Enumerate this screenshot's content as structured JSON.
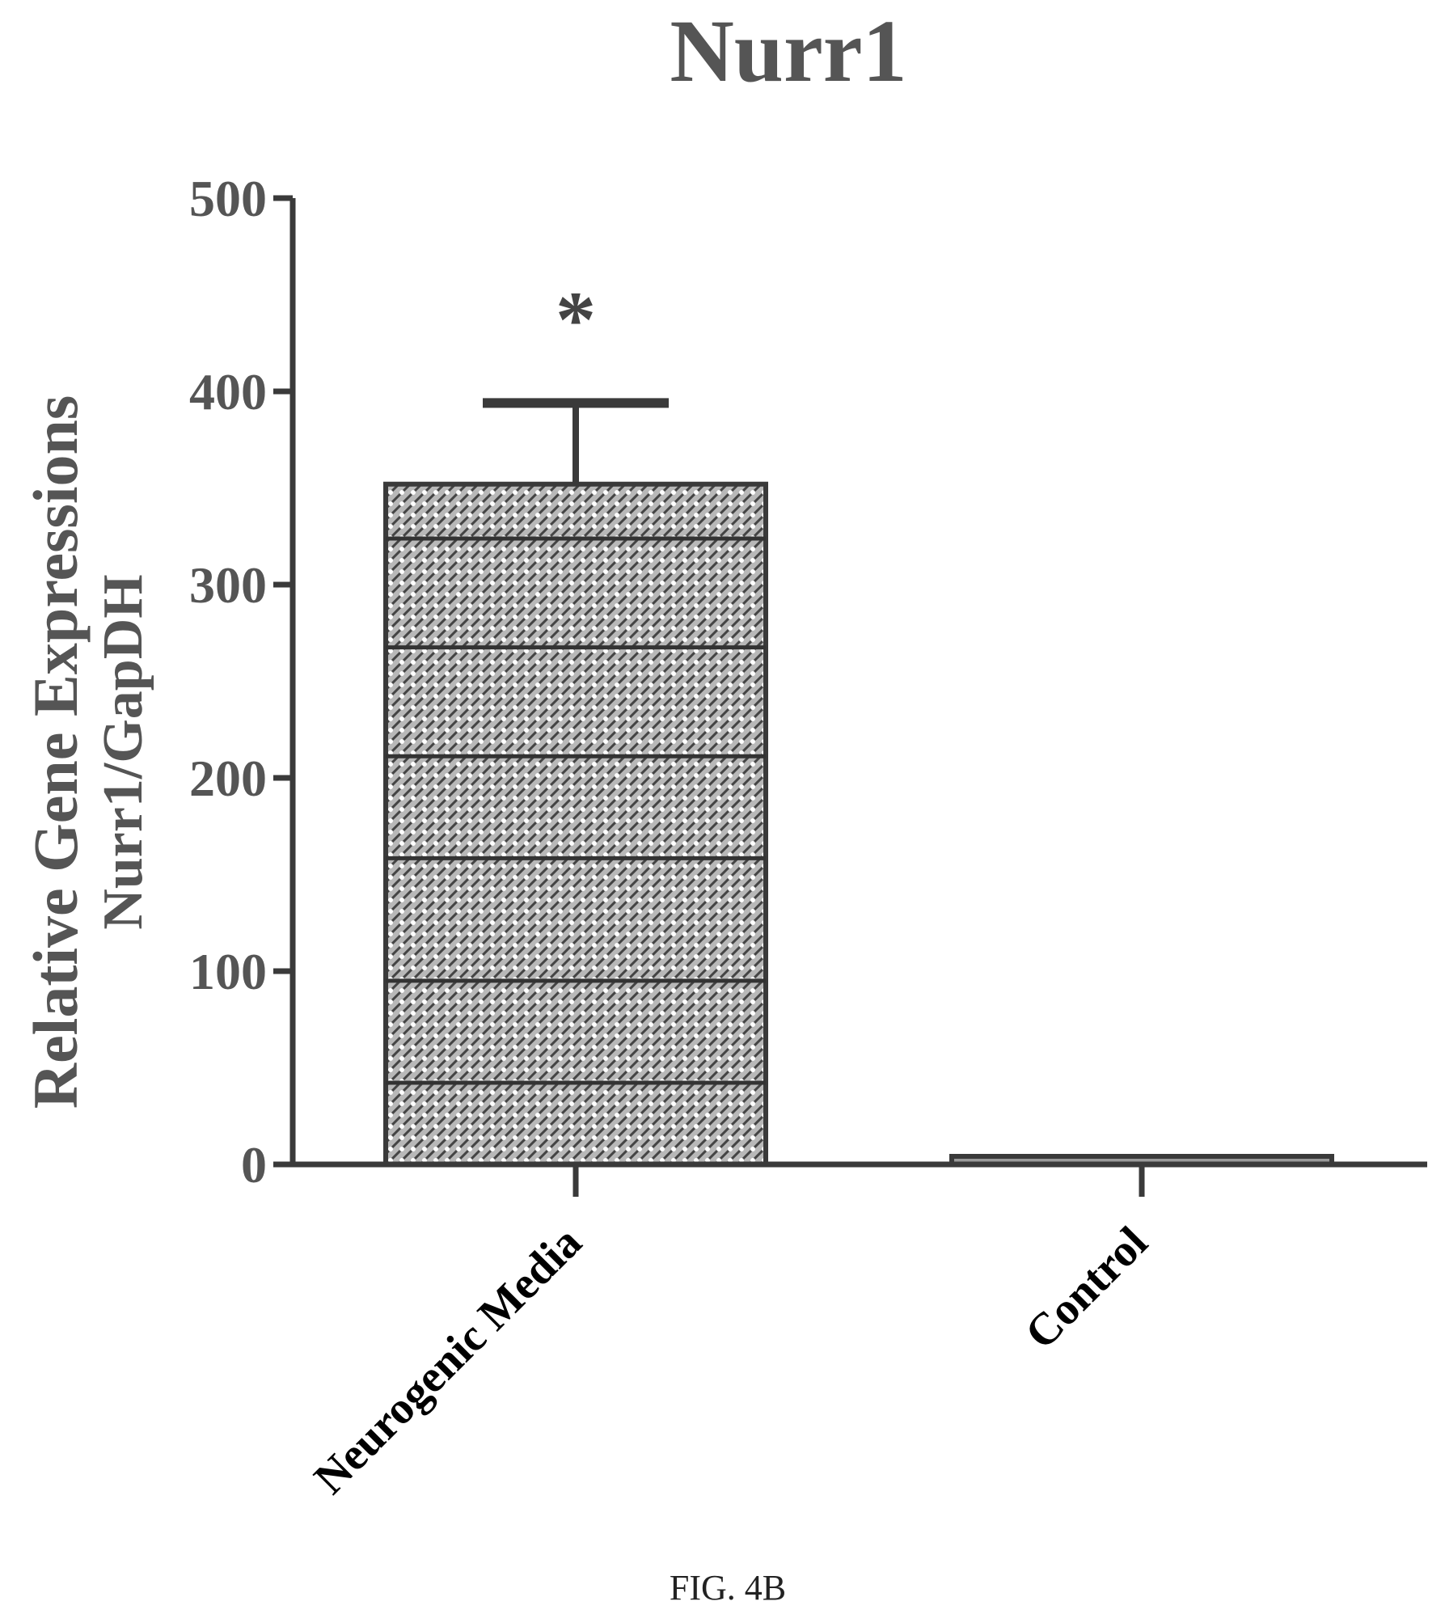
{
  "chart_data": {
    "type": "bar",
    "title": "Nurr1",
    "ylabel_line1": "Relative Gene Expressions",
    "ylabel_line2": "Nurr1/GapDH",
    "xlabel": "",
    "categories": [
      "Neurogenic Media",
      "Control"
    ],
    "values": [
      352,
      2
    ],
    "error_upper": [
      394,
      2
    ],
    "ylim": [
      0,
      500
    ],
    "yticks": [
      "0",
      "100",
      "200",
      "300",
      "400",
      "500"
    ],
    "significance": [
      "*",
      ""
    ],
    "grid": false,
    "legend": "none"
  },
  "figure_label": "FIG. 4B",
  "colors": {
    "ink": "#3a3a3a",
    "bar_fill": "#9a9a9a"
  }
}
